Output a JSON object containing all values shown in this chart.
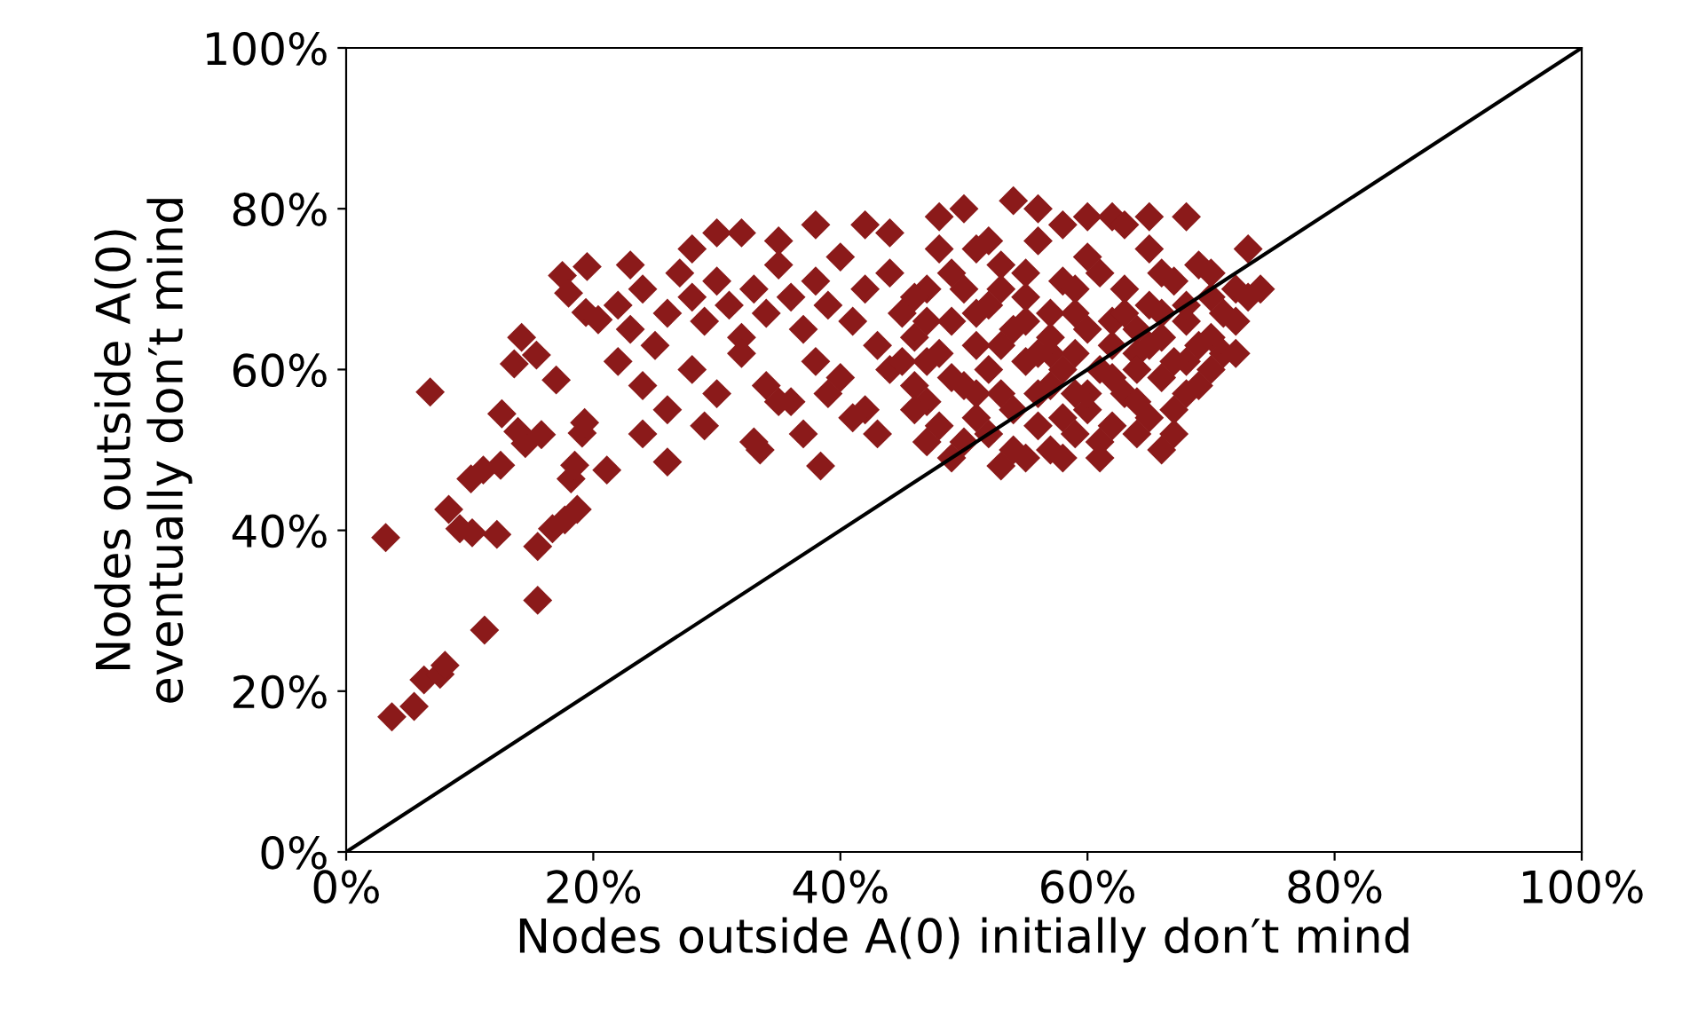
{
  "chart_data": {
    "type": "scatter",
    "xlabel": "Nodes outside A(0) initially don′t mind",
    "ylabel": "Nodes outside A(0)\neventually don′t mind",
    "xlim": [
      0,
      100
    ],
    "ylim": [
      0,
      100
    ],
    "xticks": [
      {
        "value": 0,
        "label": "0%"
      },
      {
        "value": 20,
        "label": "20%"
      },
      {
        "value": 40,
        "label": "40%"
      },
      {
        "value": 60,
        "label": "60%"
      },
      {
        "value": 80,
        "label": "80%"
      },
      {
        "value": 100,
        "label": "100%"
      }
    ],
    "yticks": [
      {
        "value": 0,
        "label": "0%"
      },
      {
        "value": 20,
        "label": "20%"
      },
      {
        "value": 40,
        "label": "40%"
      },
      {
        "value": 60,
        "label": "60%"
      },
      {
        "value": 80,
        "label": "80%"
      },
      {
        "value": 100,
        "label": "100%"
      }
    ],
    "grid": false,
    "legend": false,
    "marker": "diamond",
    "series": [
      {
        "color": "#8b1a1a",
        "x": [
          3.2,
          3.7,
          5.5,
          6.8,
          6.3,
          7.6,
          8,
          8.3,
          9.2,
          10.2,
          10.1,
          11.1,
          12.2,
          12.5,
          11.2,
          12.6,
          13.9,
          14.5,
          15.8,
          13.6,
          14.2,
          15.4,
          17,
          15.5,
          15.5,
          16.7,
          17.7,
          18.7,
          18.2,
          18.5,
          19.1,
          19.3,
          21.1,
          17.5,
          18,
          19.5,
          19.4,
          20.4,
          24,
          26,
          33.5,
          38.4,
          22,
          23,
          24,
          25,
          26,
          27,
          28,
          29,
          30,
          31,
          32,
          33,
          34,
          35,
          36,
          37,
          38,
          39,
          40,
          41,
          42,
          43,
          44,
          45,
          22,
          24,
          26,
          28,
          30,
          32,
          34,
          36,
          38,
          40,
          42,
          44,
          23,
          30,
          32,
          35,
          38,
          28,
          29,
          33,
          35,
          37,
          39,
          41,
          43,
          46,
          46,
          47,
          48,
          44,
          42,
          47,
          48,
          49,
          50,
          50,
          51,
          51,
          52,
          52,
          53,
          53,
          54,
          54,
          55,
          55,
          56,
          56,
          57,
          57,
          58,
          58,
          59,
          59,
          60,
          60,
          61,
          61,
          62,
          62,
          63,
          63,
          64,
          64,
          65,
          65,
          66,
          66,
          67,
          67,
          68,
          68,
          69,
          70,
          70,
          71,
          72,
          73,
          74,
          73,
          72,
          69,
          66,
          61,
          53,
          55,
          57,
          59,
          49,
          47,
          48,
          50,
          52,
          54,
          56,
          58,
          60,
          63,
          65,
          68,
          49,
          51,
          55,
          57,
          60,
          62,
          64,
          67,
          45,
          46,
          47,
          48,
          50,
          52,
          54,
          56,
          58,
          60,
          62,
          64,
          66,
          68,
          70,
          71,
          72,
          58,
          53,
          51,
          55,
          57,
          59,
          61,
          63,
          65,
          67,
          69,
          49,
          51,
          47,
          46,
          53,
          56,
          59,
          62,
          64,
          66,
          68,
          70,
          65
        ],
        "values": [
          39.1,
          16.8,
          18.1,
          57.2,
          21.4,
          22.1,
          23.2,
          42.6,
          40.2,
          39.7,
          46.4,
          47.5,
          39.5,
          48.1,
          27.6,
          54.5,
          52.3,
          50.8,
          51.9,
          60.7,
          64,
          61.8,
          58.7,
          38,
          31.3,
          40.2,
          41.3,
          42.6,
          46.4,
          48.1,
          52.1,
          53.4,
          47.5,
          71.7,
          69.5,
          72.8,
          67.1,
          66.2,
          52,
          48.5,
          50,
          48,
          68,
          65,
          70,
          63,
          67,
          72,
          69,
          66,
          71,
          68,
          64,
          70,
          67,
          73,
          69,
          65,
          71,
          68,
          74,
          66,
          70,
          63,
          72,
          67,
          61,
          58,
          55,
          60,
          57,
          62,
          58,
          56,
          61,
          59,
          55,
          60,
          73,
          77,
          77,
          76,
          78,
          75,
          53,
          51,
          56,
          52,
          57,
          54,
          52,
          58,
          64,
          70,
          75,
          77,
          78,
          51,
          62,
          66,
          58,
          70,
          63,
          54,
          68,
          60,
          73,
          57,
          65,
          50,
          61,
          69,
          53,
          76,
          64,
          58,
          71,
          49,
          62,
          67,
          55,
          74,
          60,
          51,
          66,
          79,
          57,
          70,
          62,
          52,
          68,
          75,
          59,
          64,
          71,
          55,
          66,
          61,
          73,
          64,
          69,
          62,
          70,
          69,
          70,
          75,
          62,
          58,
          50,
          49,
          48,
          49,
          50,
          52,
          49,
          56,
          79,
          80,
          76,
          81,
          80,
          78,
          79,
          78,
          79,
          79,
          72,
          75,
          72,
          67,
          65,
          59,
          56,
          52,
          61,
          69,
          66,
          53,
          51,
          52,
          55,
          57,
          54,
          57,
          53,
          65,
          72,
          68,
          72,
          67,
          66,
          60,
          63,
          67,
          66,
          62,
          70,
          72,
          67,
          63,
          61,
          63,
          59,
          57,
          61,
          55,
          70,
          62,
          57,
          63,
          60,
          67,
          57,
          60,
          54
        ]
      },
      {
        "type": "line",
        "color": "#000000",
        "marker": "none",
        "line_style": "solid",
        "x": [
          0,
          100
        ],
        "values": [
          0,
          100
        ]
      }
    ]
  }
}
